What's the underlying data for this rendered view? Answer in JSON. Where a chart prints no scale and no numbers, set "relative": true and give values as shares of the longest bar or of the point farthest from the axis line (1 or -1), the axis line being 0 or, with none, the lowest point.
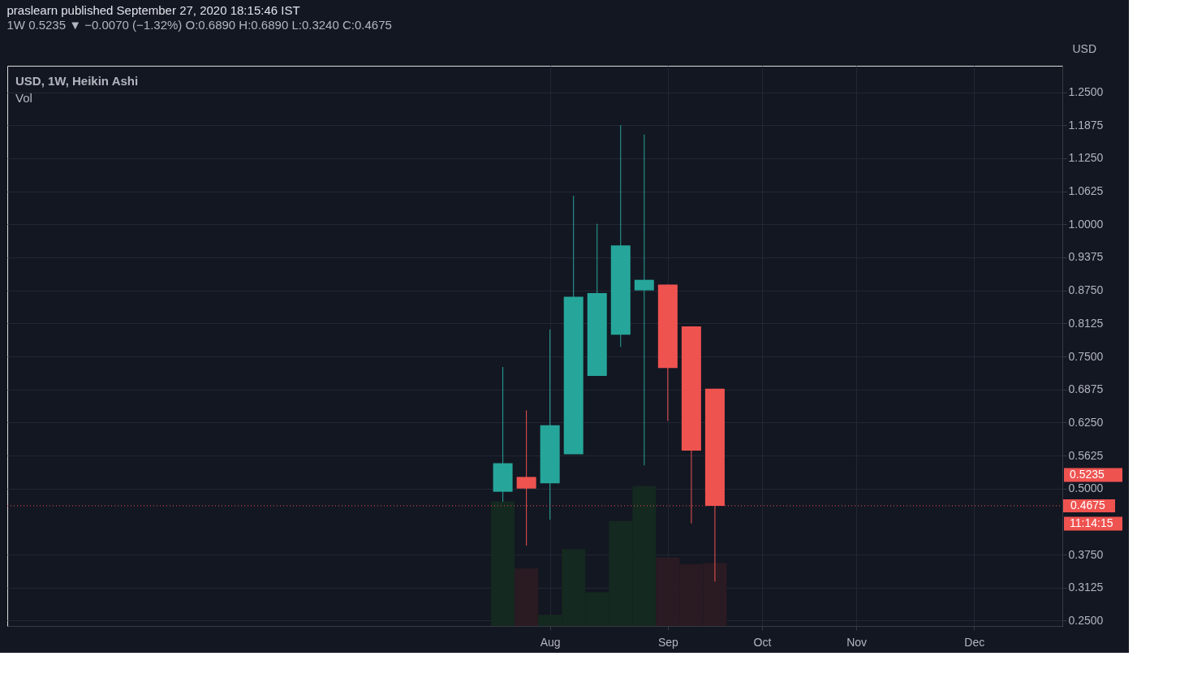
{
  "chart_data": [
    {
      "type": "candlestick",
      "title": "praslearn published September 27, 2020 18:15:46 IST",
      "subtitle": "1W 0.5235 ▼ −0.0070 (−1.32%) O:0.6890 H:0.6890 L:0.3240 C:0.4675",
      "ylabel": "USD",
      "x": [
        "2020-07-20",
        "2020-07-27",
        "2020-08-03",
        "2020-08-10",
        "2020-08-17",
        "2020-08-24",
        "2020-08-31",
        "2020-09-07",
        "2020-09-14",
        "2020-09-21"
      ],
      "ohlc": [
        [
          0.494,
          0.73,
          0.475,
          0.548
        ],
        [
          0.522,
          0.648,
          0.392,
          0.5
        ],
        [
          0.51,
          0.801,
          0.441,
          0.62
        ],
        [
          0.565,
          1.054,
          0.565,
          0.863
        ],
        [
          0.713,
          1.001,
          0.713,
          0.87
        ],
        [
          0.791,
          1.1875,
          0.768,
          0.96
        ],
        [
          0.875,
          1.17,
          0.544,
          0.895
        ],
        [
          0.886,
          0.886,
          0.628,
          0.728
        ],
        [
          0.807,
          0.807,
          0.434,
          0.572
        ],
        [
          0.689,
          0.689,
          0.324,
          0.4675
        ]
      ],
      "colors": [
        "#26a69a",
        "#ef5350",
        "#26a69a",
        "#26a69a",
        "#26a69a",
        "#26a69a",
        "#26a69a",
        "#ef5350",
        "#ef5350",
        "#ef5350"
      ],
      "xlim": [
        "2020-02-25",
        "2021-01-01"
      ],
      "xticks": [
        {
          "value": "2020-08-03",
          "label": "Aug"
        },
        {
          "value": "2020-09-07",
          "label": "Sep"
        },
        {
          "value": "2020-10-05",
          "label": "Oct"
        },
        {
          "value": "2020-11-02",
          "label": "Nov"
        },
        {
          "value": "2020-12-07",
          "label": "Dec"
        }
      ],
      "ylim": [
        0.24,
        1.3
      ],
      "yticks": [
        {
          "value": 0.25,
          "label": "0.2500"
        },
        {
          "value": 0.3125,
          "label": "0.3125"
        },
        {
          "value": 0.375,
          "label": "0.3750"
        },
        {
          "value": 0.5,
          "label": "0.5000"
        },
        {
          "value": 0.5625,
          "label": "0.5625"
        },
        {
          "value": 0.625,
          "label": "0.6250"
        },
        {
          "value": 0.6875,
          "label": "0.6875"
        },
        {
          "value": 0.75,
          "label": "0.7500"
        },
        {
          "value": 0.8125,
          "label": "0.8125"
        },
        {
          "value": 0.875,
          "label": "0.8750"
        },
        {
          "value": 0.9375,
          "label": "0.9375"
        },
        {
          "value": 1.0,
          "label": "1.0000"
        },
        {
          "value": 1.0625,
          "label": "1.0625"
        },
        {
          "value": 1.125,
          "label": "1.1250"
        },
        {
          "value": 1.1875,
          "label": "1.1875"
        },
        {
          "value": 1.25,
          "label": "1.2500"
        }
      ],
      "grid": true,
      "ref_lines": [
        {
          "axis": "y",
          "value": 0.4675,
          "label": "0.4675",
          "color": "#ef5350",
          "line_style": "dotted"
        }
      ],
      "annotations": [
        "USD, 1W, Heikin Ashi",
        "Vol",
        "0.5235",
        "11:14:15"
      ]
    },
    {
      "type": "bar",
      "relative": true,
      "categories": [
        null,
        null,
        null,
        null,
        null,
        null,
        null,
        null,
        null,
        null
      ],
      "values": [
        0.89,
        0.41,
        0.08,
        0.55,
        0.24,
        0.75,
        1,
        0.49,
        0.44,
        0.45
      ],
      "colors": [
        "#14291f",
        "#2a1a22",
        "#14291f",
        "#14291f",
        "#14291f",
        "#14291f",
        "#14291f",
        "#2a1a22",
        "#2a1a22",
        "#2a1a22"
      ]
    }
  ]
}
